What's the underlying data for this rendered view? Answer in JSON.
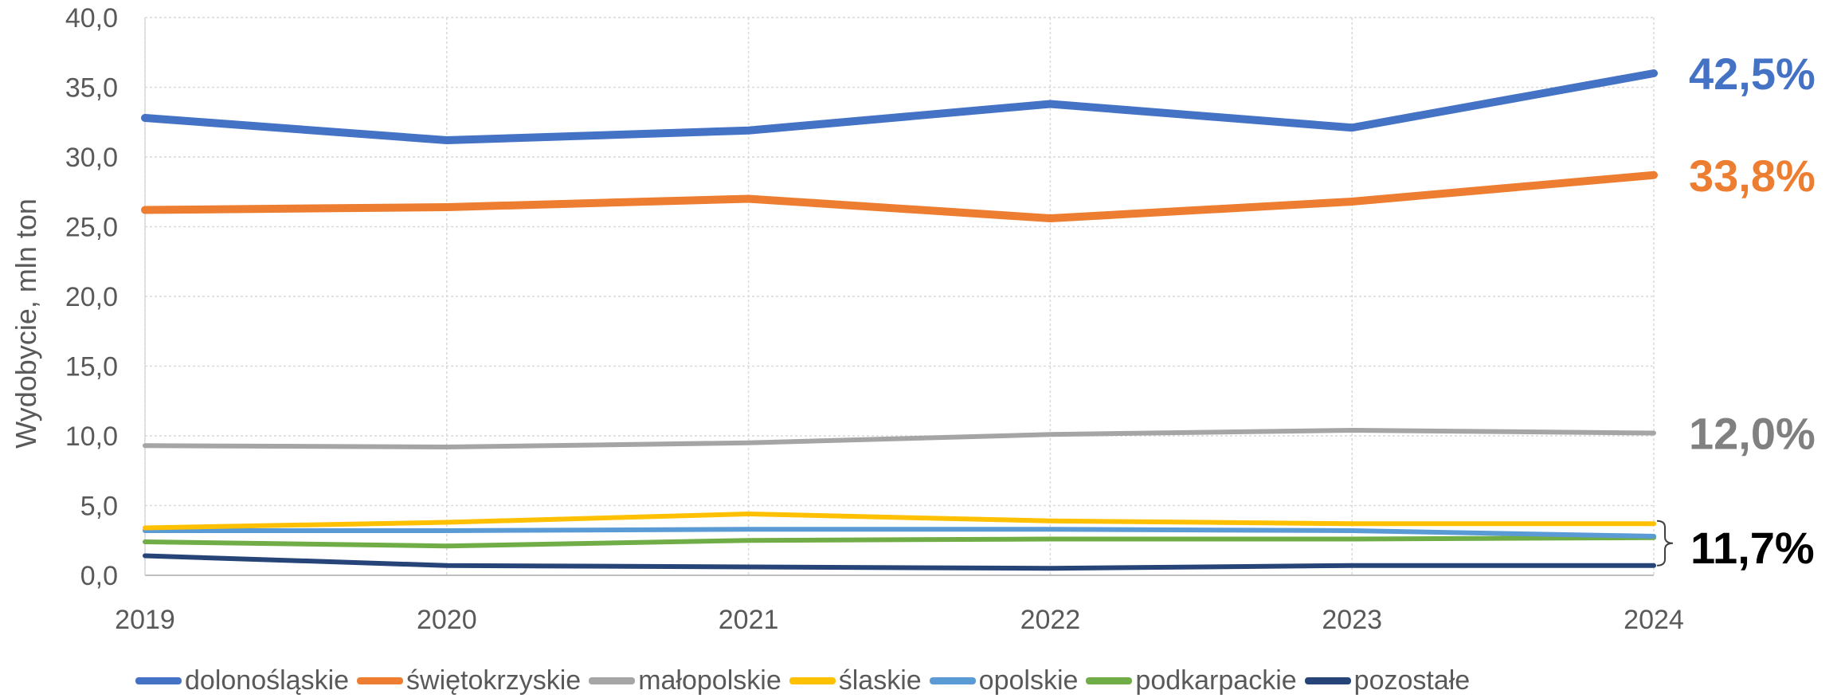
{
  "chart_data": {
    "type": "line",
    "ylabel": "Wydobycie, mln ton",
    "xlabel": "",
    "x": [
      "2019",
      "2020",
      "2021",
      "2022",
      "2023",
      "2024"
    ],
    "ylim": [
      0,
      40
    ],
    "yticks": [
      "0,0",
      "5,0",
      "10,0",
      "15,0",
      "20,0",
      "25,0",
      "30,0",
      "35,0",
      "40,0"
    ],
    "grid": true,
    "legend_position": "bottom",
    "series": [
      {
        "name": "dolonośląskie",
        "color": "#4472C4",
        "width": 10,
        "values": [
          32.8,
          31.2,
          31.9,
          33.8,
          32.1,
          36.0
        ]
      },
      {
        "name": "świętokrzyskie",
        "color": "#ED7D31",
        "width": 10,
        "values": [
          26.2,
          26.4,
          27.0,
          25.6,
          26.8,
          28.7
        ]
      },
      {
        "name": "małopolskie",
        "color": "#A5A5A5",
        "width": 6,
        "values": [
          9.3,
          9.2,
          9.5,
          10.1,
          10.4,
          10.2
        ]
      },
      {
        "name": "ślaskie",
        "color": "#FFC000",
        "width": 6,
        "values": [
          3.4,
          3.8,
          4.4,
          3.9,
          3.7,
          3.7
        ]
      },
      {
        "name": "opolskie",
        "color": "#5B9BD5",
        "width": 6,
        "values": [
          3.2,
          3.2,
          3.3,
          3.3,
          3.2,
          2.8
        ]
      },
      {
        "name": "podkarpackie",
        "color": "#70AD47",
        "width": 6,
        "values": [
          2.4,
          2.1,
          2.5,
          2.6,
          2.6,
          2.7
        ]
      },
      {
        "name": "pozostałe",
        "color": "#264478",
        "width": 6,
        "values": [
          1.4,
          0.7,
          0.6,
          0.5,
          0.7,
          0.7
        ]
      }
    ],
    "annotations": [
      {
        "text": "42,5%",
        "color": "#4472C4",
        "anchor_value": 36.0
      },
      {
        "text": "33,8%",
        "color": "#ED7D31",
        "anchor_value": 28.7
      },
      {
        "text": "12,0%",
        "color": "#808080",
        "anchor_value": 10.2
      },
      {
        "text": "11,7%",
        "color": "#000000",
        "anchor_value": 2.0,
        "bracket_range": [
          0.7,
          3.9
        ]
      }
    ]
  }
}
